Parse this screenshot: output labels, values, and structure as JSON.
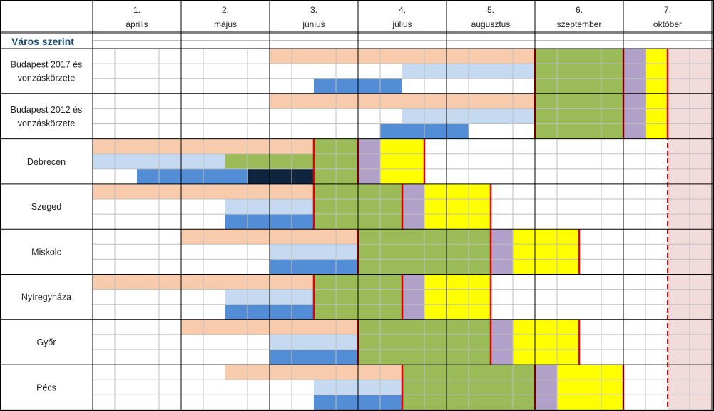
{
  "header": {
    "months": [
      {
        "num": "1.",
        "name": "április"
      },
      {
        "num": "2.",
        "name": "május"
      },
      {
        "num": "3.",
        "name": "június"
      },
      {
        "num": "4.",
        "name": "július"
      },
      {
        "num": "5.",
        "name": "augusztus"
      },
      {
        "num": "6.",
        "name": "szeptember"
      },
      {
        "num": "7.",
        "name": "október"
      }
    ],
    "section_title": "Város szerint"
  },
  "colors": {
    "peach": "#f8cbad",
    "light_blue": "#c5d9f1",
    "blue": "#538dd5",
    "navy": "#0f243e",
    "green": "#9bbb59",
    "purple": "#b1a0c7",
    "yellow": "#ffff00",
    "pink_shade": "#f2dcdb",
    "red_line": "#e00000",
    "grid": "#bfbfbf",
    "border": "#000000"
  },
  "chart_data": {
    "type": "gantt",
    "time_unit": "half-month (each month split into two halves)",
    "months": [
      "április",
      "május",
      "június",
      "július",
      "augusztus",
      "szeptember",
      "október"
    ],
    "shaded_period": {
      "start": 13,
      "end": 14,
      "color": "pink_shade",
      "marker": "dashed red line at start"
    },
    "rows": [
      {
        "label": [
          "Budapest 2017 és",
          "vonzáskörzete"
        ],
        "tracks": [
          {
            "line": 0,
            "start": 4,
            "end": 10,
            "color": "peach"
          },
          {
            "line": 1,
            "start": 7,
            "end": 10,
            "color": "light_blue"
          },
          {
            "line": 2,
            "start": 5,
            "end": 7,
            "color": "blue"
          }
        ],
        "blocks": [
          {
            "start": 10,
            "end": 12,
            "color": "green"
          },
          {
            "start": 12,
            "end": 12.5,
            "color": "purple"
          },
          {
            "start": 12.5,
            "end": 13,
            "color": "yellow"
          }
        ],
        "red_lines": [
          10,
          12,
          13
        ]
      },
      {
        "label": [
          "Budapest 2012 és",
          "vonzáskörzete"
        ],
        "tracks": [
          {
            "line": 0,
            "start": 4,
            "end": 10,
            "color": "peach"
          },
          {
            "line": 1,
            "start": 7,
            "end": 10,
            "color": "light_blue"
          },
          {
            "line": 2,
            "start": 6.5,
            "end": 8.5,
            "color": "blue"
          }
        ],
        "blocks": [
          {
            "start": 10,
            "end": 12,
            "color": "green"
          },
          {
            "start": 12,
            "end": 12.5,
            "color": "purple"
          },
          {
            "start": 12.5,
            "end": 13,
            "color": "yellow"
          }
        ],
        "red_lines": [
          10,
          12,
          13
        ]
      },
      {
        "label": [
          "Debrecen"
        ],
        "tracks": [
          {
            "line": 0,
            "start": 0,
            "end": 5,
            "color": "peach"
          },
          {
            "line": 1,
            "start": 0,
            "end": 3,
            "color": "light_blue"
          },
          {
            "line": 1,
            "start": 3,
            "end": 5,
            "color": "green"
          },
          {
            "line": 2,
            "start": 1,
            "end": 3.5,
            "color": "blue"
          },
          {
            "line": 2,
            "start": 3.5,
            "end": 5,
            "color": "navy"
          }
        ],
        "blocks": [
          {
            "start": 5,
            "end": 6,
            "color": "green"
          },
          {
            "start": 6,
            "end": 6.5,
            "color": "purple"
          },
          {
            "start": 6.5,
            "end": 7.5,
            "color": "yellow"
          }
        ],
        "red_lines": [
          5,
          6,
          7.5
        ]
      },
      {
        "label": [
          "Szeged"
        ],
        "tracks": [
          {
            "line": 0,
            "start": 0,
            "end": 5,
            "color": "peach"
          },
          {
            "line": 1,
            "start": 3,
            "end": 5,
            "color": "light_blue"
          },
          {
            "line": 2,
            "start": 3,
            "end": 5,
            "color": "blue"
          }
        ],
        "blocks": [
          {
            "start": 5,
            "end": 7,
            "color": "green"
          },
          {
            "start": 7,
            "end": 7.5,
            "color": "purple"
          },
          {
            "start": 7.5,
            "end": 9,
            "color": "yellow"
          }
        ],
        "red_lines": [
          5,
          7,
          9
        ]
      },
      {
        "label": [
          "Miskolc"
        ],
        "tracks": [
          {
            "line": 0,
            "start": 2,
            "end": 6,
            "color": "peach"
          },
          {
            "line": 1,
            "start": 4,
            "end": 6,
            "color": "light_blue"
          },
          {
            "line": 2,
            "start": 4,
            "end": 6,
            "color": "blue"
          }
        ],
        "blocks": [
          {
            "start": 6,
            "end": 9,
            "color": "green"
          },
          {
            "start": 9,
            "end": 9.5,
            "color": "purple"
          },
          {
            "start": 9.5,
            "end": 11,
            "color": "yellow"
          }
        ],
        "red_lines": [
          6,
          9,
          11
        ]
      },
      {
        "label": [
          "Nyíregyháza"
        ],
        "tracks": [
          {
            "line": 0,
            "start": 0,
            "end": 5,
            "color": "peach"
          },
          {
            "line": 1,
            "start": 3,
            "end": 5,
            "color": "light_blue"
          },
          {
            "line": 2,
            "start": 3,
            "end": 5,
            "color": "blue"
          }
        ],
        "blocks": [
          {
            "start": 5,
            "end": 7,
            "color": "green"
          },
          {
            "start": 7,
            "end": 7.5,
            "color": "purple"
          },
          {
            "start": 7.5,
            "end": 9,
            "color": "yellow"
          }
        ],
        "red_lines": [
          5,
          7,
          9
        ]
      },
      {
        "label": [
          "Győr"
        ],
        "tracks": [
          {
            "line": 0,
            "start": 2,
            "end": 6,
            "color": "peach"
          },
          {
            "line": 1,
            "start": 4,
            "end": 6,
            "color": "light_blue"
          },
          {
            "line": 2,
            "start": 4,
            "end": 6,
            "color": "blue"
          }
        ],
        "blocks": [
          {
            "start": 6,
            "end": 9,
            "color": "green"
          },
          {
            "start": 9,
            "end": 9.5,
            "color": "purple"
          },
          {
            "start": 9.5,
            "end": 11,
            "color": "yellow"
          }
        ],
        "red_lines": [
          6,
          9,
          11
        ]
      },
      {
        "label": [
          "Pécs"
        ],
        "tracks": [
          {
            "line": 0,
            "start": 3,
            "end": 7,
            "color": "peach"
          },
          {
            "line": 1,
            "start": 5,
            "end": 7,
            "color": "light_blue"
          },
          {
            "line": 2,
            "start": 5,
            "end": 7,
            "color": "blue"
          }
        ],
        "blocks": [
          {
            "start": 7,
            "end": 10,
            "color": "green"
          },
          {
            "start": 10,
            "end": 10.5,
            "color": "purple"
          },
          {
            "start": 10.5,
            "end": 12,
            "color": "yellow"
          }
        ],
        "red_lines": [
          7,
          10,
          12
        ]
      }
    ]
  }
}
